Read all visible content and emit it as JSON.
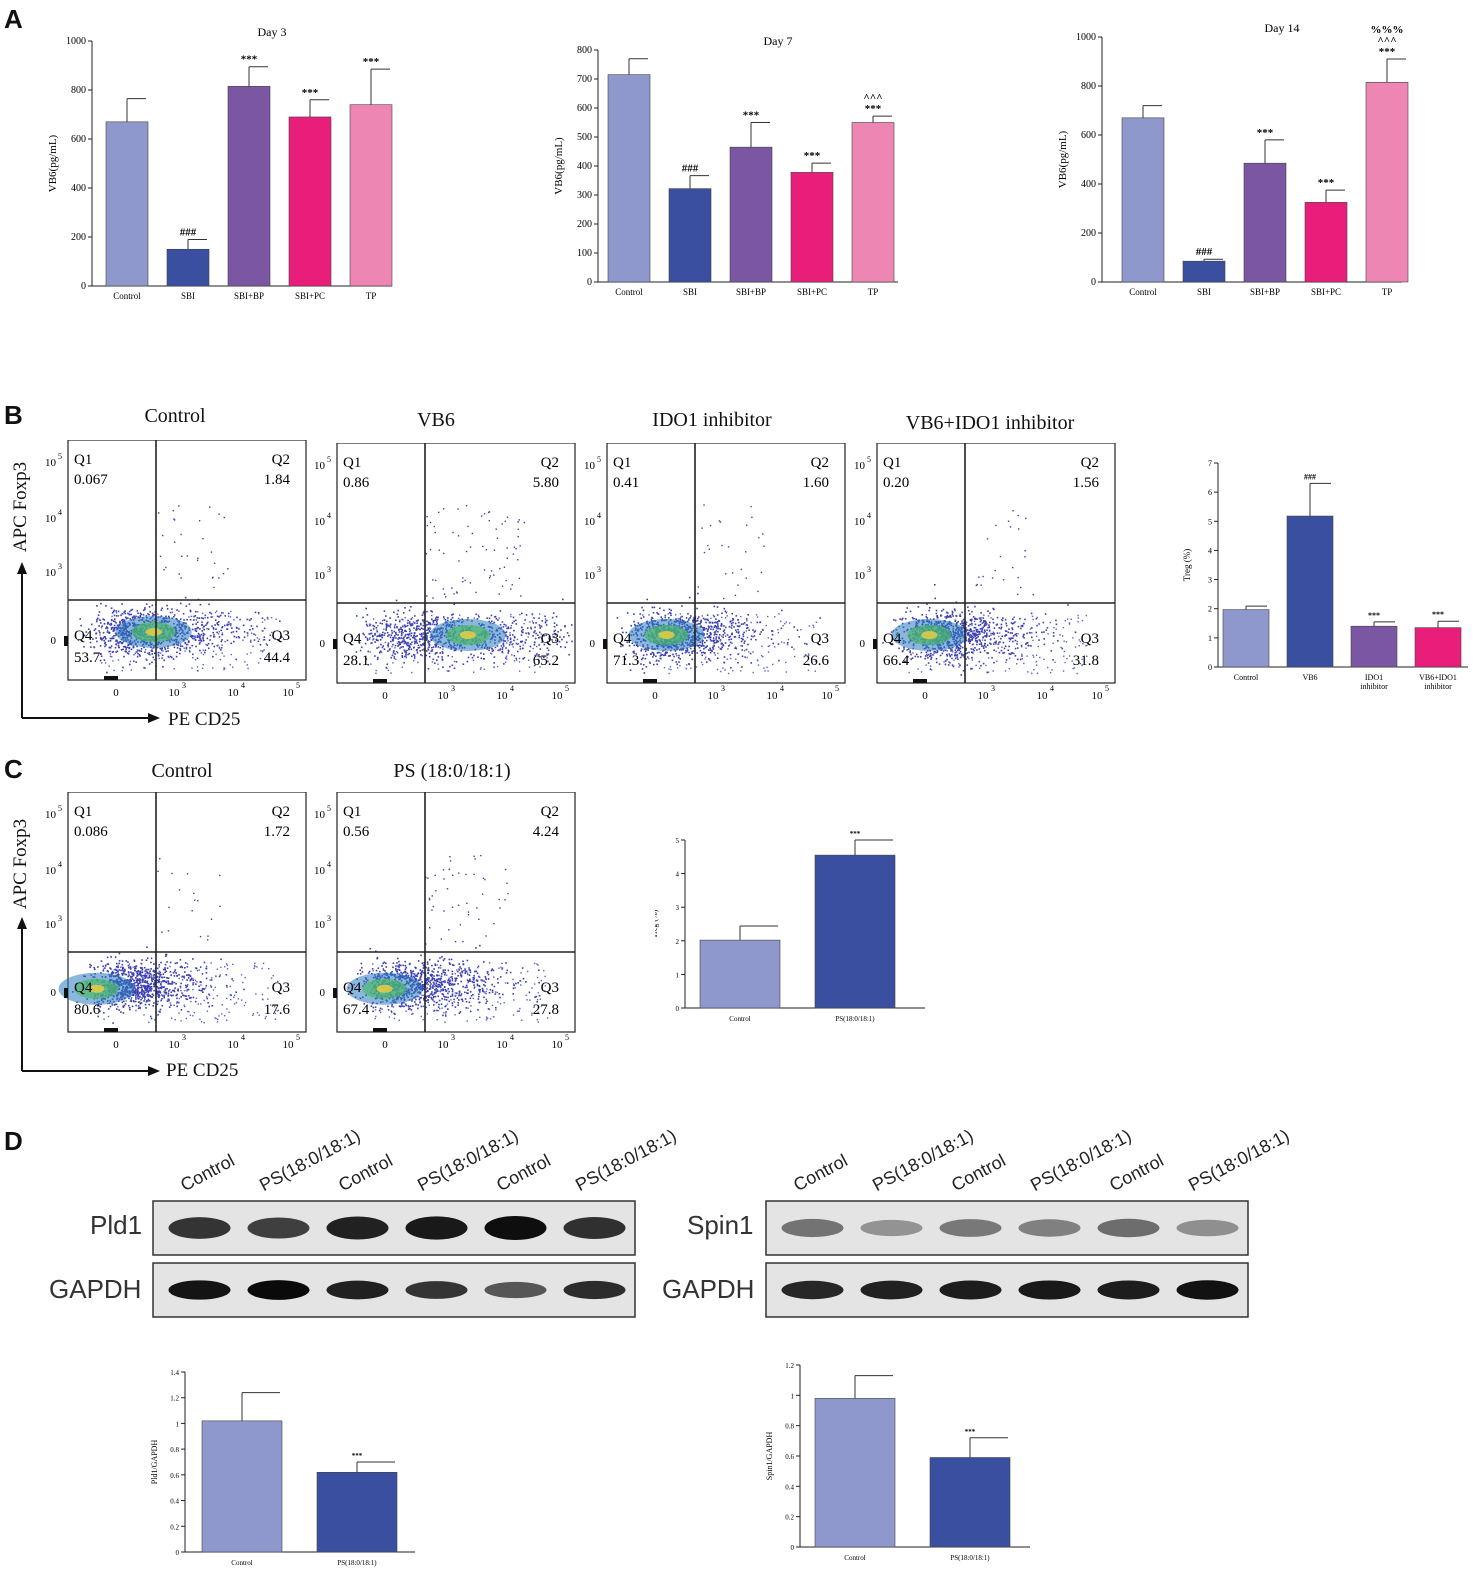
{
  "panels": {
    "a": "A",
    "b": "B",
    "c": "C",
    "d": "D"
  },
  "colors": {
    "c1": "#8e98cc",
    "c2": "#3a4fa0",
    "c3": "#7a56a3",
    "c4": "#e91e7a",
    "c5": "#ee86b3"
  },
  "chart_data": [
    {
      "type": "bar",
      "title": "Day 3",
      "ylabel": "VB6(pg/mL)",
      "ylim": [
        0,
        1000
      ],
      "ticks": [
        0,
        200,
        400,
        600,
        800,
        1000
      ],
      "categories": [
        "Control",
        "SBI",
        "SBI+BP",
        "SBI+PC",
        "TP"
      ],
      "values": [
        670,
        150,
        815,
        690,
        740
      ],
      "errors": [
        95,
        40,
        80,
        70,
        145
      ],
      "annotations": [
        "",
        "###",
        "***",
        "***",
        "***"
      ]
    },
    {
      "type": "bar",
      "title": "Day 7",
      "ylabel": "VB6(pg/mL)",
      "ylim": [
        0,
        800
      ],
      "ticks": [
        0,
        100,
        200,
        300,
        400,
        500,
        600,
        700,
        800
      ],
      "categories": [
        "Control",
        "SBI",
        "SBI+BP",
        "SBI+PC",
        "TP"
      ],
      "values": [
        715,
        322,
        465,
        378,
        550
      ],
      "errors": [
        55,
        45,
        85,
        32,
        22
      ],
      "annotations": [
        "",
        "###",
        "***",
        "***",
        "^^^\n***"
      ]
    },
    {
      "type": "bar",
      "title": "Day 14",
      "ylabel": "VB6(pg/mL)",
      "ylim": [
        0,
        1000
      ],
      "ticks": [
        0,
        200,
        400,
        600,
        800,
        1000
      ],
      "categories": [
        "Control",
        "SBI",
        "SBI+BP",
        "SBI+PC",
        "TP"
      ],
      "values": [
        670,
        85,
        485,
        325,
        815
      ],
      "errors": [
        50,
        8,
        95,
        50,
        95
      ],
      "annotations": [
        "",
        "###",
        "***",
        "***",
        "%%%\n^^^\n***"
      ]
    },
    {
      "type": "bar",
      "title": "",
      "ylabel": "Treg (%)",
      "ylim": [
        0,
        7
      ],
      "ticks": [
        0,
        1,
        2,
        3,
        4,
        5,
        6,
        7
      ],
      "categories": [
        "Control",
        "VB6",
        "IDO1\ninhibitor",
        "VB6+IDO1\ninhibitor"
      ],
      "values": [
        1.97,
        5.18,
        1.4,
        1.35
      ],
      "errors": [
        0.12,
        1.12,
        0.15,
        0.22
      ],
      "annotations": [
        "",
        "###",
        "***",
        "***"
      ]
    },
    {
      "type": "bar",
      "title": "",
      "ylabel": "Treg (%)",
      "ylim": [
        0,
        5
      ],
      "ticks": [
        0,
        1,
        2,
        3,
        4,
        5
      ],
      "categories": [
        "Control",
        "PS(18:0/18:1)"
      ],
      "values": [
        2.02,
        4.55
      ],
      "errors": [
        0.42,
        0.45
      ],
      "annotations": [
        "",
        "***"
      ]
    },
    {
      "type": "bar",
      "title": "",
      "ylabel": "Pld1/GAPDH",
      "ylim": [
        0,
        1.4
      ],
      "ticks": [
        0,
        0.2,
        0.4,
        0.6,
        0.8,
        1.0,
        1.2,
        1.4
      ],
      "categories": [
        "Control",
        "PS(18:0/18:1)"
      ],
      "values": [
        1.02,
        0.62
      ],
      "errors": [
        0.22,
        0.08
      ],
      "annotations": [
        "",
        "***"
      ]
    },
    {
      "type": "bar",
      "title": "",
      "ylabel": "Spin1/GAPDH",
      "ylim": [
        0,
        1.2
      ],
      "ticks": [
        0,
        0.2,
        0.4,
        0.6,
        0.8,
        1.0,
        1.2
      ],
      "categories": [
        "Control",
        "PS(18:0/18:1)"
      ],
      "values": [
        0.98,
        0.59
      ],
      "errors": [
        0.15,
        0.13
      ],
      "annotations": [
        "",
        "***"
      ]
    }
  ],
  "flow": {
    "ylabel": "APC Foxp3",
    "xlabel": "PE CD25",
    "xticks": [
      "0",
      "10",
      "10",
      "10"
    ],
    "xtick_exp": [
      "",
      "3",
      "4",
      "5"
    ],
    "yticks": [
      "0",
      "10",
      "10",
      "10"
    ],
    "ytick_exp": [
      "",
      "3",
      "4",
      "5"
    ],
    "plots": [
      {
        "title": "Control",
        "q1": "Q1",
        "q1v": "0.067",
        "q2": "Q2",
        "q2v": "1.84",
        "q3": "Q3",
        "q3v": "44.4",
        "q4": "Q4",
        "q4v": "53.7"
      },
      {
        "title": "VB6",
        "q1": "Q1",
        "q1v": "0.86",
        "q2": "Q2",
        "q2v": "5.80",
        "q3": "Q3",
        "q3v": "65.2",
        "q4": "Q4",
        "q4v": "28.1"
      },
      {
        "title": "IDO1 inhibitor",
        "q1": "Q1",
        "q1v": "0.41",
        "q2": "Q2",
        "q2v": "1.60",
        "q3": "Q3",
        "q3v": "26.6",
        "q4": "Q4",
        "q4v": "71.3"
      },
      {
        "title": "VB6+IDO1 inhibitor",
        "q1": "Q1",
        "q1v": "0.20",
        "q2": "Q2",
        "q2v": "1.56",
        "q3": "Q3",
        "q3v": "31.8",
        "q4": "Q4",
        "q4v": "66.4"
      },
      {
        "title": "Control",
        "q1": "Q1",
        "q1v": "0.086",
        "q2": "Q2",
        "q2v": "1.72",
        "q3": "Q3",
        "q3v": "17.6",
        "q4": "Q4",
        "q4v": "80.6"
      },
      {
        "title": "PS (18:0/18:1)",
        "q1": "Q1",
        "q1v": "0.56",
        "q2": "Q2",
        "q2v": "4.24",
        "q3": "Q3",
        "q3v": "27.8",
        "q4": "Q4",
        "q4v": "67.4"
      }
    ]
  },
  "blots": {
    "lanes": [
      "Control",
      "PS(18:0/18:1)",
      "Control",
      "PS(18:0/18:1)",
      "Control",
      "PS(18:0/18:1)"
    ],
    "left_target": "Pld1",
    "right_target": "Spin1",
    "loading": "GAPDH",
    "left_intensity": [
      0.78,
      0.72,
      0.88,
      0.92,
      0.98,
      0.8
    ],
    "right_intensity": [
      0.45,
      0.28,
      0.42,
      0.38,
      0.48,
      0.3
    ],
    "gapdh_left": [
      0.95,
      1.0,
      0.88,
      0.78,
      0.6,
      0.82
    ],
    "gapdh_right": [
      0.85,
      0.88,
      0.9,
      0.92,
      0.9,
      0.96
    ]
  }
}
